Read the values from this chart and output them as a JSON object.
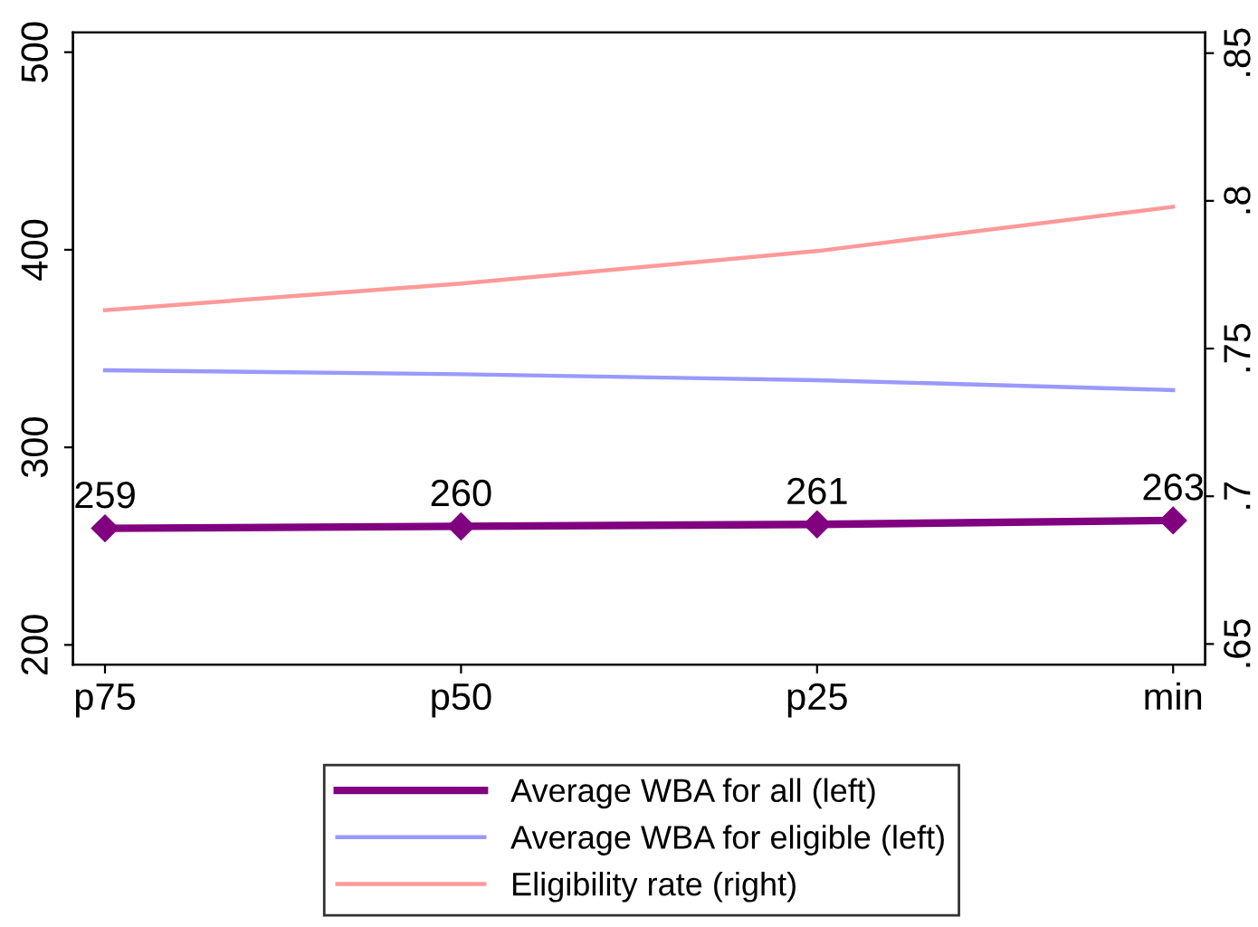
{
  "chart_data": {
    "type": "line",
    "categories": [
      "p75",
      "p50",
      "p25",
      "min"
    ],
    "series": [
      {
        "name": "Average WBA for all (left)",
        "color": "#800080",
        "values": [
          259,
          260,
          261,
          263
        ],
        "marker": "diamond",
        "value_labels": [
          "259",
          "260",
          "261",
          "263"
        ]
      },
      {
        "name": "Average WBA for eligible (left)",
        "color": "#9999ff",
        "values": [
          339,
          337,
          334,
          329
        ],
        "marker": "none"
      },
      {
        "name": "Eligibility rate (right)",
        "color": "#ff9999",
        "values": [
          0.763,
          0.772,
          0.783,
          0.798
        ],
        "marker": "none",
        "axis": "y2"
      }
    ],
    "ylim": [
      190,
      510
    ],
    "yticks": [
      200,
      300,
      400,
      500
    ],
    "y2lim": [
      0.643,
      0.857
    ],
    "y2ticks": [
      {
        "value": 0.65,
        "label": ".65"
      },
      {
        "value": 0.7,
        "label": ".7"
      },
      {
        "value": 0.75,
        "label": ".75"
      },
      {
        "value": 0.8,
        "label": ".8"
      },
      {
        "value": 0.85,
        "label": ".85"
      }
    ],
    "grid": false,
    "legend": "bottom",
    "line_style": "solid"
  }
}
